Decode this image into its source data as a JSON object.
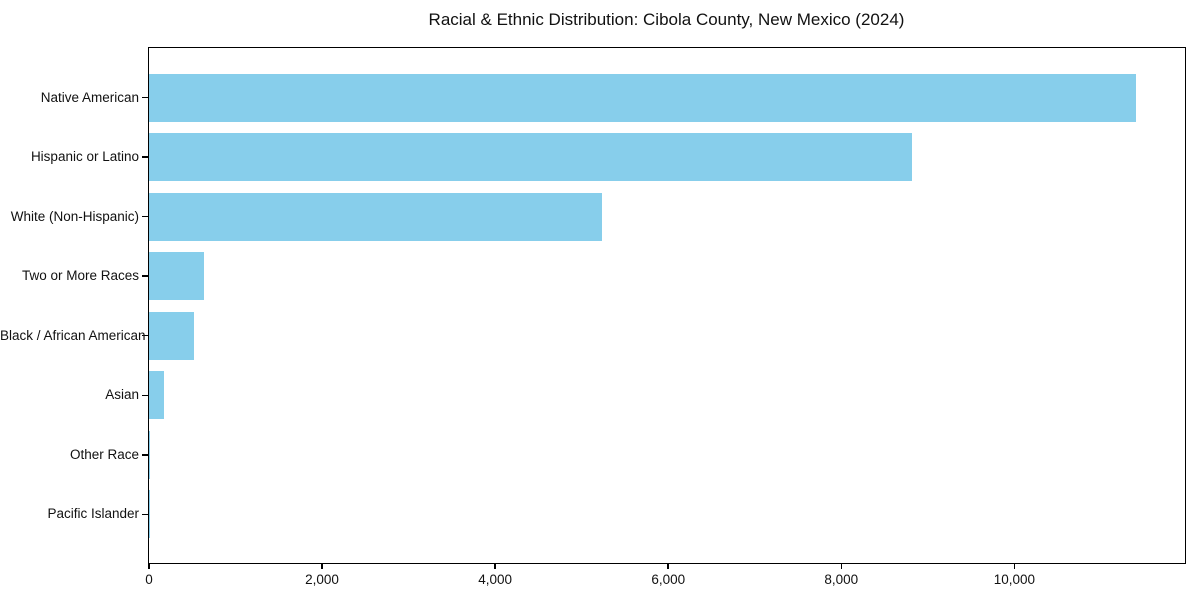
{
  "chart_data": {
    "type": "bar",
    "orientation": "horizontal",
    "title": "Racial & Ethnic Distribution: Cibola County, New Mexico (2024)",
    "categories": [
      "Native American",
      "Hispanic or Latino",
      "White (Non-Hispanic)",
      "Two or More Races",
      "Black / African American",
      "Asian",
      "Other Race",
      "Pacific Islander"
    ],
    "values": [
      11400,
      8820,
      5240,
      630,
      520,
      175,
      12,
      2
    ],
    "xlabel": "",
    "ylabel": "",
    "xlim": [
      0,
      11960
    ],
    "x_ticks": [
      0,
      2000,
      4000,
      6000,
      8000,
      10000
    ],
    "x_tick_labels": [
      "0",
      "2,000",
      "4,000",
      "6,000",
      "8,000",
      "10,000"
    ],
    "bar_color": "#87CEEB",
    "axis_color": "#000000",
    "text_color": "#111111",
    "background_color": "#ffffff",
    "grid": false,
    "legend": null
  }
}
